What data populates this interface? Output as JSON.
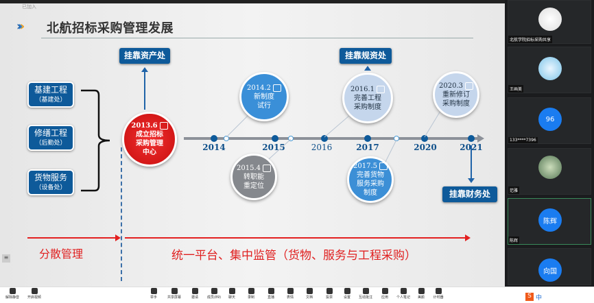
{
  "window": {
    "top_label": "已加入"
  },
  "slide": {
    "title": "北航招标采购管理发展",
    "title_icon": "triple-chevron-icon",
    "departments": [
      {
        "name": "基建工程",
        "unit": "（基建处）"
      },
      {
        "name": "修缮工程",
        "unit": "（后勤处）"
      },
      {
        "name": "货物服务",
        "unit": "（设备处）"
      }
    ],
    "origin": {
      "date": "2013.6",
      "text1": "成立招标",
      "text2": "采购管理",
      "text3": "中心"
    },
    "years": [
      "2014",
      "2015",
      "2016",
      "2017",
      "2020",
      "2021"
    ],
    "events": [
      {
        "date": "2014.2",
        "line1": "新制度",
        "line2": "试行"
      },
      {
        "date": "2015.4",
        "line1": "转职能",
        "line2": "重定位"
      },
      {
        "date": "2016.1",
        "line1": "完善工程",
        "line2": "采购制度"
      },
      {
        "date": "2017.5",
        "line1": "完善货物",
        "line2": "服务采购",
        "line3": "制度"
      },
      {
        "date": "2020.3",
        "line1": "重新修订",
        "line2": "采购制度"
      }
    ],
    "tags": [
      "挂靠资产处",
      "挂靠规资处",
      "挂靠财务处"
    ],
    "phase1": "分散管理",
    "phase2": "统一平台、集中监管（货物、服务与工程采购）",
    "colors": {
      "primary": "#0e5a9a",
      "accent_red": "#e32020"
    }
  },
  "participants": [
    {
      "name": "北航学院招标采购共享",
      "avatar": "flower-photo"
    },
    {
      "name": "王画美",
      "avatar": "whale-photo"
    },
    {
      "name": "133****7396",
      "avatar_text": "96"
    },
    {
      "name": "范雅",
      "avatar": "plant-photo"
    },
    {
      "name": "陈辉",
      "avatar_text": "陈辉"
    },
    {
      "name": "",
      "avatar_text": "向国"
    }
  ],
  "toolbar": {
    "left": [
      "解除静音",
      "开启视频"
    ],
    "center": [
      "举手",
      "共享屏幕",
      "邀请",
      "成员(89)",
      "聊天",
      "录制",
      "直播",
      "表情",
      "文档",
      "投票",
      "设置",
      "互动批注",
      "应用",
      "个人笔记",
      "美颜",
      "计时器"
    ],
    "tray": "中"
  }
}
